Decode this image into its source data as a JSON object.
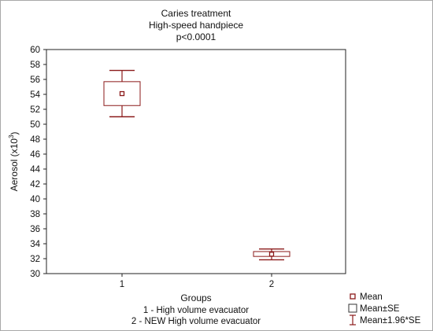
{
  "chart_data": {
    "type": "box",
    "title_lines": [
      "Caries treatment",
      "High-speed handpiece",
      "p<0.0001"
    ],
    "ylabel": "Aerosol (x10",
    "ylabel_sup": "3",
    "ylabel_close": ")",
    "xlabel": "Groups",
    "xlabel_notes": [
      "1 - High volume evacuator",
      "2 - NEW High volume evacuator"
    ],
    "ylim": [
      30,
      60
    ],
    "yticks": [
      "30",
      "32",
      "34",
      "36",
      "38",
      "40",
      "42",
      "44",
      "46",
      "48",
      "50",
      "52",
      "54",
      "56",
      "58",
      "60"
    ],
    "categories": [
      "1",
      "2"
    ],
    "series": [
      {
        "category": "1",
        "mean": 54.1,
        "se_low": 52.5,
        "se_high": 55.7,
        "ci_low": 51.0,
        "ci_high": 57.2
      },
      {
        "category": "2",
        "mean": 32.6,
        "se_low": 32.3,
        "se_high": 32.95,
        "ci_low": 31.85,
        "ci_high": 33.3
      }
    ],
    "legend": [
      "Mean",
      "Mean±SE",
      "Mean±1.96*SE"
    ],
    "legend_position": "bottom-right",
    "color": "#8b1a1a",
    "grid": false
  }
}
